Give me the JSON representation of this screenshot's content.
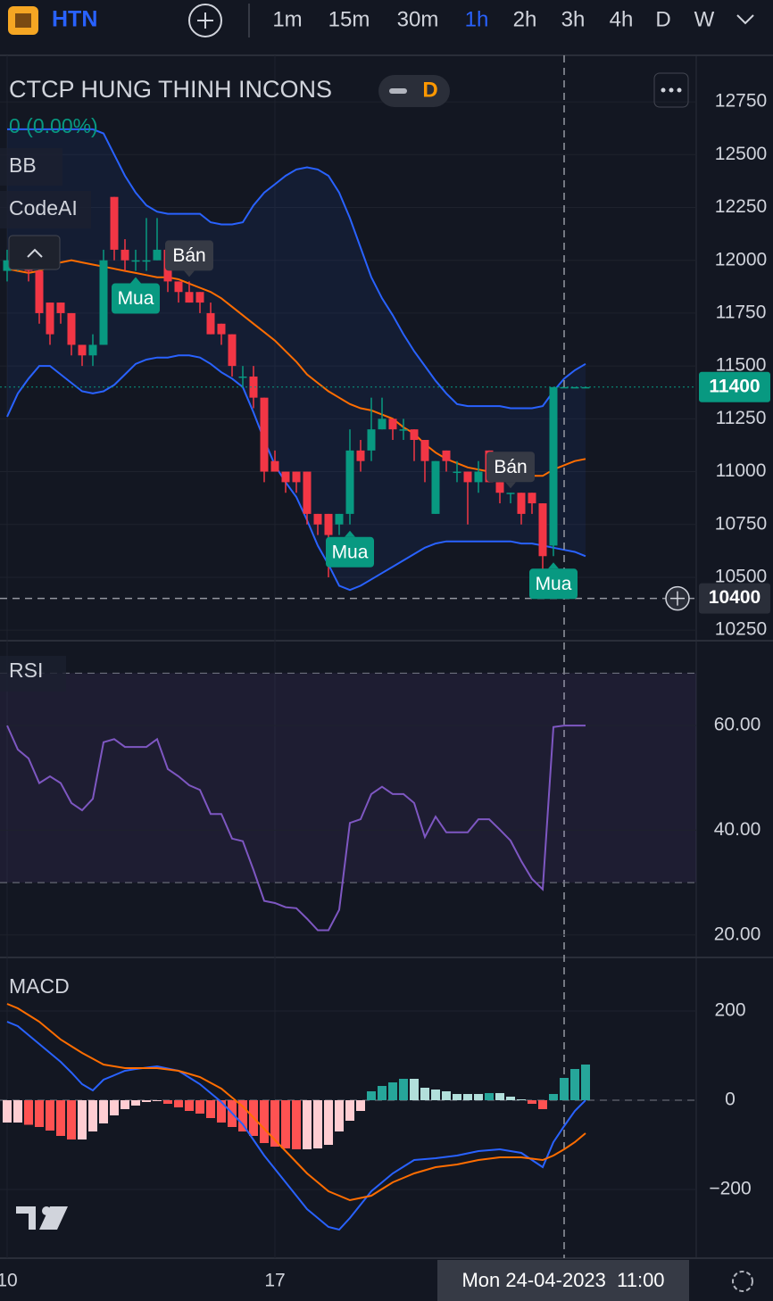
{
  "toolbar": {
    "symbol": "HTN",
    "intervals": [
      "1m",
      "15m",
      "30m",
      "1h",
      "2h",
      "3h",
      "4h",
      "D",
      "W"
    ],
    "active_interval": "1h"
  },
  "chart_data": [
    {
      "type": "candlestick",
      "title": "CTCP HUNG THINH INCONS",
      "interval_badge": "D",
      "change": "0 (0.00%)",
      "indicators": [
        "BB",
        "CodeAI"
      ],
      "categories": [
        "10",
        null,
        null,
        null,
        null,
        null,
        null,
        null,
        null,
        null,
        null,
        null,
        null,
        null,
        null,
        null,
        null,
        null,
        null,
        null,
        null,
        null,
        null,
        null,
        null,
        "17",
        null,
        null,
        null,
        null,
        null,
        null,
        null,
        null,
        null,
        null,
        null,
        null,
        null,
        null,
        null,
        null,
        null,
        null,
        null,
        null,
        null,
        null,
        null,
        null,
        null,
        null,
        null,
        null,
        null
      ],
      "open": [
        11950,
        12000,
        12000,
        11950,
        11800,
        11800,
        11750,
        11600,
        11550,
        11600,
        12300,
        12050,
        12000,
        12000,
        12000,
        12050,
        11900,
        11850,
        11850,
        11750,
        11700,
        11650,
        11450,
        11450,
        11350,
        11050,
        11000,
        11000,
        11000,
        10800,
        10800,
        10750,
        10800,
        11100,
        11100,
        11200,
        11250,
        11200,
        11200,
        11150,
        10800,
        11100,
        11000,
        11000,
        10950,
        11100,
        10950,
        10900,
        10900,
        10900,
        10850,
        10650,
        11400,
        11400,
        11400
      ],
      "high": [
        12050,
        12050,
        12050,
        12000,
        11800,
        11800,
        11750,
        11600,
        11650,
        12050,
        12300,
        12100,
        12050,
        12200,
        12200,
        12050,
        11900,
        11900,
        11850,
        11800,
        11700,
        11650,
        11500,
        11500,
        11350,
        11100,
        11000,
        11000,
        11000,
        10800,
        10800,
        10800,
        11200,
        11150,
        11350,
        11350,
        11250,
        11250,
        11200,
        11150,
        11050,
        11100,
        11050,
        11000,
        11050,
        11100,
        10950,
        10900,
        10900,
        10900,
        10850,
        11400,
        11400,
        11400,
        11400
      ],
      "low": [
        11900,
        11950,
        11900,
        11700,
        11600,
        11700,
        11550,
        11500,
        11500,
        11600,
        12000,
        11950,
        11950,
        11950,
        12000,
        11850,
        11800,
        11800,
        11750,
        11650,
        11600,
        11450,
        11400,
        11300,
        10950,
        11000,
        10900,
        10900,
        10750,
        10700,
        10500,
        10700,
        10750,
        11000,
        11050,
        11200,
        11150,
        11150,
        11050,
        10950,
        10800,
        11000,
        10950,
        10750,
        10900,
        10950,
        10850,
        10850,
        10750,
        10800,
        10500,
        10600,
        11400,
        11400,
        11400
      ],
      "close": [
        12000,
        12000,
        11950,
        11750,
        11650,
        11750,
        11600,
        11550,
        11600,
        12000,
        12050,
        12000,
        12000,
        12000,
        12050,
        11900,
        11850,
        11800,
        11800,
        11650,
        11650,
        11500,
        11450,
        11350,
        11000,
        11000,
        10950,
        10950,
        10800,
        10750,
        10700,
        10800,
        11100,
        11050,
        11200,
        11250,
        11200,
        11200,
        11150,
        11050,
        11050,
        11050,
        11000,
        10950,
        11000,
        10950,
        10900,
        10900,
        10800,
        10850,
        10600,
        11400,
        11400,
        11400,
        11400
      ],
      "up_color": "#089981",
      "down_color": "#f23645",
      "series": [
        {
          "color": "#2962ff",
          "values": [
            12620,
            12620,
            12620,
            12620,
            12620,
            12620,
            12620,
            12620,
            12620,
            12600,
            12500,
            12400,
            12320,
            12260,
            12230,
            12220,
            12220,
            12220,
            12220,
            12180,
            12170,
            12170,
            12180,
            12260,
            12320,
            12360,
            12400,
            12430,
            12440,
            12430,
            12400,
            12320,
            12200,
            12060,
            11920,
            11820,
            11740,
            11650,
            11570,
            11500,
            11430,
            11370,
            11320,
            11310,
            11310,
            11310,
            11310,
            11300,
            11300,
            11300,
            11310,
            11380,
            11440,
            11480,
            11510
          ]
        },
        {
          "color": "#ff6d00",
          "values": [
            11960,
            11950,
            11940,
            11950,
            11970,
            11990,
            12000,
            11990,
            11980,
            11970,
            11960,
            11950,
            11940,
            11930,
            11920,
            11920,
            11910,
            11890,
            11870,
            11850,
            11820,
            11780,
            11740,
            11700,
            11660,
            11620,
            11570,
            11520,
            11460,
            11420,
            11380,
            11350,
            11320,
            11300,
            11290,
            11270,
            11250,
            11210,
            11180,
            11130,
            11090,
            11060,
            11040,
            11020,
            11010,
            11000,
            11000,
            10990,
            10990,
            10980,
            10980,
            11010,
            11030,
            11050,
            11060
          ]
        },
        {
          "color": "#2962ff",
          "values": [
            11260,
            11370,
            11440,
            11500,
            11500,
            11460,
            11420,
            11380,
            11370,
            11380,
            11410,
            11460,
            11510,
            11530,
            11540,
            11540,
            11550,
            11550,
            11540,
            11510,
            11470,
            11440,
            11400,
            11280,
            11150,
            11030,
            10950,
            10880,
            10770,
            10650,
            10560,
            10460,
            10440,
            10460,
            10490,
            10520,
            10550,
            10580,
            10610,
            10640,
            10660,
            10670,
            10670,
            10670,
            10670,
            10670,
            10670,
            10670,
            10660,
            10660,
            10650,
            10640,
            10630,
            10620,
            10600
          ]
        }
      ],
      "band_fill": "rgba(41,98,255,0.08)",
      "signals": [
        null,
        null,
        null,
        null,
        null,
        null,
        null,
        null,
        null,
        null,
        null,
        null,
        {
          "label": "Mua",
          "at": "low"
        },
        null,
        null,
        null,
        null,
        {
          "label": "Bán",
          "at": "high"
        },
        null,
        null,
        null,
        null,
        null,
        null,
        null,
        null,
        null,
        null,
        null,
        null,
        null,
        null,
        {
          "label": "Mua",
          "at": "low"
        },
        null,
        null,
        null,
        null,
        null,
        null,
        null,
        null,
        null,
        null,
        null,
        null,
        null,
        null,
        {
          "label": "Bán",
          "at": "high"
        },
        null,
        null,
        null,
        {
          "label": "Mua",
          "at": "low"
        },
        null,
        null,
        null
      ],
      "price_label": 11400,
      "crosshair": {
        "price": 10400,
        "time": "Mon 24-04-2023  11:00"
      },
      "ylim": [
        10200,
        12970
      ],
      "yticks": [
        10250,
        10500,
        10750,
        11000,
        11250,
        11500,
        11750,
        12000,
        12250,
        12500,
        12750
      ],
      "grid": true
    },
    {
      "type": "line",
      "title": "RSI",
      "color": "#7e57c2",
      "values": [
        60,
        55.4,
        53.7,
        49,
        50.3,
        49,
        45.2,
        43.8,
        46,
        56.8,
        57.4,
        55.9,
        55.9,
        55.9,
        57.4,
        51.7,
        50.3,
        48.6,
        47.7,
        43.1,
        43.1,
        38.4,
        37.9,
        32.4,
        26.5,
        26.1,
        25.3,
        25.1,
        23.1,
        20.9,
        20.9,
        24.8,
        41.4,
        42.1,
        46.9,
        48.3,
        46.9,
        46.9,
        45.2,
        38.7,
        42.6,
        39.6,
        39.6,
        39.6,
        42.1,
        42.1,
        40.1,
        38,
        34.1,
        30.7,
        28.7,
        59.7,
        60,
        60,
        60
      ],
      "band": [
        30,
        70
      ],
      "band_fill": "rgba(126,87,194,0.1)",
      "ylim": [
        15.7,
        76.2
      ],
      "yticks": [
        {
          "value": 20,
          "label": "20.00"
        },
        {
          "value": 40,
          "label": "40.00"
        },
        {
          "value": 60,
          "label": "60.00"
        }
      ]
    },
    {
      "type": "macd",
      "title": "MACD",
      "series": [
        {
          "color": "#2962ff",
          "values": [
            176,
            166,
            146,
            126,
            106,
            86,
            62,
            36,
            22,
            46,
            56,
            66,
            70,
            73,
            76,
            71,
            66,
            51,
            36,
            16,
            -4,
            -29,
            -54,
            -89,
            -124,
            -154,
            -184,
            -214,
            -244,
            -264,
            -284,
            -290,
            -264,
            -234,
            -204,
            -184,
            -164,
            -149,
            -134,
            -132,
            -130,
            -127,
            -124,
            -119,
            -114,
            -112,
            -110,
            -114,
            -118,
            -134,
            -150,
            -94,
            -58,
            -24,
            0
          ]
        },
        {
          "color": "#ff6d00",
          "values": [
            216,
            206,
            191,
            176,
            156,
            136,
            121,
            106,
            93,
            80,
            76,
            72,
            72,
            72,
            72,
            69,
            66,
            59,
            52,
            39,
            26,
            6,
            -14,
            -39,
            -64,
            -89,
            -114,
            -139,
            -164,
            -184,
            -204,
            -214,
            -224,
            -219,
            -214,
            -199,
            -184,
            -174,
            -164,
            -157,
            -150,
            -147,
            -144,
            -139,
            -134,
            -131,
            -128,
            -128,
            -128,
            -131,
            -134,
            -124,
            -110,
            -94,
            -74
          ]
        }
      ],
      "histogram": [
        -50,
        -50,
        -55,
        -60,
        -68,
        -80,
        -88,
        -88,
        -70,
        -52,
        -34,
        -20,
        -12,
        -4,
        -2,
        -8,
        -16,
        -24,
        -30,
        -40,
        -50,
        -60,
        -70,
        -80,
        -96,
        -104,
        -108,
        -110,
        -110,
        -108,
        -100,
        -70,
        -46,
        -24,
        20,
        32,
        40,
        48,
        48,
        28,
        24,
        20,
        14,
        14,
        14,
        16,
        16,
        8,
        2,
        -8,
        -20,
        14,
        50,
        70,
        80
      ],
      "histogram_colors": {
        "up_rising": "#26a69a",
        "up_falling": "#b2dfdb",
        "down_falling": "#ff5252",
        "down_rising": "#ffcdd2"
      },
      "ylim": [
        -354,
        320
      ],
      "yticks": [
        {
          "value": -200,
          "label": "−200"
        },
        0,
        200
      ]
    }
  ]
}
